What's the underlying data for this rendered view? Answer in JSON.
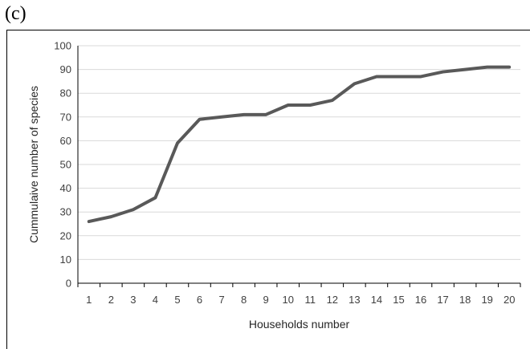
{
  "panel_label": "(c)",
  "chart_data": {
    "type": "line",
    "title": "",
    "xlabel": "Households number",
    "ylabel": "Cummulaive number of species",
    "categories": [
      "1",
      "2",
      "3",
      "4",
      "5",
      "6",
      "7",
      "8",
      "9",
      "10",
      "11",
      "12",
      "13",
      "14",
      "15",
      "16",
      "17",
      "18",
      "19",
      "20"
    ],
    "values": [
      26,
      28,
      31,
      36,
      59,
      69,
      70,
      71,
      71,
      75,
      75,
      77,
      84,
      87,
      87,
      87,
      89,
      90,
      91,
      91
    ],
    "ylim": [
      0,
      100
    ],
    "yticks": [
      0,
      10,
      20,
      30,
      40,
      50,
      60,
      70,
      80,
      90,
      100
    ],
    "grid": true,
    "line_color": "#595959",
    "grid_color": "#d9d9d9"
  }
}
